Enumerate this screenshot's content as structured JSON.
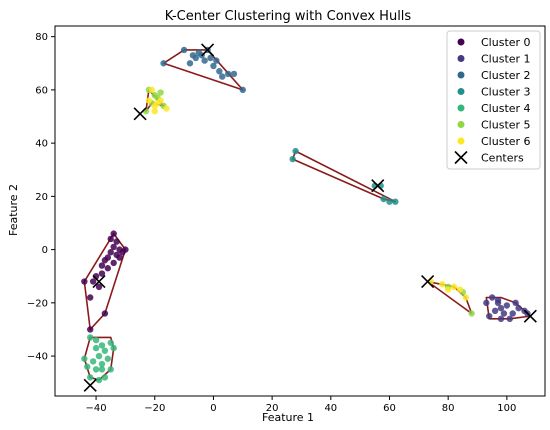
{
  "chart_data": {
    "type": "scatter",
    "title": "K-Center Clustering with Convex Hulls",
    "xlabel": "Feature 1",
    "ylabel": "Feature 2",
    "xlim": [
      -54,
      113
    ],
    "ylim": [
      -55,
      84
    ],
    "xticks": [
      -40,
      -20,
      0,
      20,
      40,
      60,
      80,
      100
    ],
    "yticks": [
      -40,
      -20,
      0,
      20,
      40,
      60,
      80
    ],
    "grid": false,
    "legend_position": "top-right",
    "series": [
      {
        "name": "Cluster 0",
        "color": "#440154",
        "points": [
          [
            -36,
            -3
          ],
          [
            -35,
            -1
          ],
          [
            -34,
            -5
          ],
          [
            -33,
            -2
          ],
          [
            -32,
            0
          ],
          [
            -34,
            1
          ],
          [
            -37,
            -4
          ],
          [
            -36,
            -7
          ],
          [
            -38,
            -6
          ],
          [
            -40,
            -10
          ],
          [
            -41,
            -12
          ],
          [
            -39,
            -14
          ],
          [
            -38,
            -9
          ],
          [
            -35,
            4
          ],
          [
            -34,
            6
          ],
          [
            -31,
            -1
          ],
          [
            -33,
            3
          ],
          [
            -30,
            0
          ],
          [
            -42,
            -18
          ],
          [
            -42,
            -30
          ],
          [
            -37,
            -24
          ],
          [
            -44,
            -12
          ],
          [
            -32,
            -3
          ]
        ]
      },
      {
        "name": "Cluster 1",
        "color": "#443983",
        "points": [
          [
            95,
            -18
          ],
          [
            97,
            -20
          ],
          [
            98,
            -22
          ],
          [
            100,
            -21
          ],
          [
            96,
            -23
          ],
          [
            94,
            -25
          ],
          [
            98,
            -26
          ],
          [
            102,
            -24
          ],
          [
            104,
            -22
          ],
          [
            106,
            -23
          ],
          [
            103,
            -20
          ],
          [
            97,
            -19
          ],
          [
            99,
            -24
          ],
          [
            101,
            -26
          ],
          [
            107,
            -24
          ],
          [
            93,
            -20
          ]
        ]
      },
      {
        "name": "Cluster 2",
        "color": "#31688e",
        "points": [
          [
            -8,
            70
          ],
          [
            -6,
            72
          ],
          [
            -4,
            73
          ],
          [
            -3,
            71
          ],
          [
            -1,
            72
          ],
          [
            0,
            69
          ],
          [
            2,
            67
          ],
          [
            3,
            65
          ],
          [
            5,
            66
          ],
          [
            7,
            66
          ],
          [
            -2,
            75
          ],
          [
            -5,
            74
          ],
          [
            -7,
            73
          ],
          [
            -10,
            75
          ],
          [
            -17,
            70
          ],
          [
            10,
            60
          ],
          [
            1,
            71
          ]
        ]
      },
      {
        "name": "Cluster 3",
        "color": "#21918c",
        "points": [
          [
            28,
            37
          ],
          [
            27,
            34
          ],
          [
            55,
            24
          ],
          [
            58,
            19
          ],
          [
            60,
            18
          ],
          [
            62,
            18
          ],
          [
            57,
            24
          ]
        ]
      },
      {
        "name": "Cluster 4",
        "color": "#35b779",
        "points": [
          [
            -42,
            -33
          ],
          [
            -40,
            -34
          ],
          [
            -38,
            -36
          ],
          [
            -37,
            -38
          ],
          [
            -39,
            -40
          ],
          [
            -41,
            -42
          ],
          [
            -43,
            -44
          ],
          [
            -40,
            -45
          ],
          [
            -38,
            -43
          ],
          [
            -36,
            -41
          ],
          [
            -35,
            -35
          ],
          [
            -34,
            -37
          ],
          [
            -35,
            -45
          ],
          [
            -37,
            -48
          ],
          [
            -39,
            -49
          ],
          [
            -42,
            -48
          ],
          [
            -44,
            -41
          ],
          [
            -40,
            -37
          ],
          [
            -38,
            -45
          ]
        ]
      },
      {
        "name": "Cluster 5",
        "color": "#90d743",
        "points": [
          [
            -22,
            60
          ],
          [
            -20,
            58
          ],
          [
            -21,
            55
          ],
          [
            -19,
            57
          ],
          [
            -17,
            54
          ],
          [
            -23,
            52
          ],
          [
            -18,
            59
          ],
          [
            88,
            -24
          ],
          [
            85,
            -16
          ],
          [
            80,
            -14
          ]
        ]
      },
      {
        "name": "Cluster 6",
        "color": "#fde725",
        "points": [
          [
            -21,
            60
          ],
          [
            -19,
            55
          ],
          [
            -20,
            54
          ],
          [
            -22,
            56
          ],
          [
            -18,
            56
          ],
          [
            -16,
            53
          ],
          [
            -20,
            52
          ],
          [
            74,
            -12
          ],
          [
            78,
            -13
          ],
          [
            80,
            -15
          ],
          [
            82,
            -14
          ],
          [
            84,
            -15
          ],
          [
            86,
            -18
          ]
        ]
      }
    ],
    "centers": {
      "name": "Centers",
      "color": "#000000",
      "points": [
        [
          -2,
          75
        ],
        [
          -25,
          51
        ],
        [
          56,
          24
        ],
        [
          -39,
          -12
        ],
        [
          73,
          -12
        ],
        [
          108,
          -25
        ],
        [
          -42,
          -51
        ]
      ]
    },
    "hulls": {
      "color": "#8b1a1a",
      "polygons": [
        [
          [
            -17,
            70
          ],
          [
            -10,
            75
          ],
          [
            -2,
            75
          ],
          [
            10,
            60
          ]
        ],
        [
          [
            -23,
            52
          ],
          [
            -22,
            60
          ],
          [
            -17,
            54
          ],
          [
            -21,
            55
          ]
        ],
        [
          [
            28,
            37
          ],
          [
            62,
            18
          ],
          [
            58,
            19
          ],
          [
            27,
            34
          ]
        ],
        [
          [
            -34,
            6
          ],
          [
            -30,
            0
          ],
          [
            -37,
            -24
          ],
          [
            -42,
            -30
          ],
          [
            -44,
            -12
          ]
        ],
        [
          [
            73,
            -12
          ],
          [
            82,
            -14
          ],
          [
            86,
            -18
          ],
          [
            88,
            -24
          ]
        ],
        [
          [
            93,
            -18
          ],
          [
            98,
            -18
          ],
          [
            103,
            -20
          ],
          [
            107,
            -24
          ],
          [
            108,
            -25
          ],
          [
            101,
            -26
          ],
          [
            94,
            -26
          ]
        ],
        [
          [
            -42,
            -33
          ],
          [
            -35,
            -33
          ],
          [
            -34,
            -37
          ],
          [
            -35,
            -45
          ],
          [
            -39,
            -49
          ],
          [
            -42,
            -48
          ],
          [
            -44,
            -41
          ]
        ]
      ]
    }
  }
}
